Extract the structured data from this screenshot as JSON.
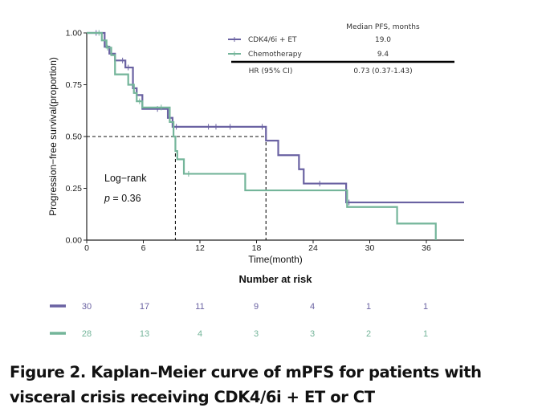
{
  "chart_data": {
    "type": "line",
    "subtype": "kaplan-meier-step",
    "ylabel": "Progression−free survival(proportion)",
    "xlabel": "Time(month)",
    "xlim": [
      0,
      39
    ],
    "ylim": [
      0,
      1
    ],
    "x_ticks": [
      0,
      6,
      12,
      18,
      24,
      30,
      36
    ],
    "x_tick_labels": [
      "0",
      "6",
      "12",
      "18",
      "24",
      "30",
      "36"
    ],
    "y_ticks": [
      0,
      0.25,
      0.5,
      0.75,
      1.0
    ],
    "y_tick_labels": [
      "0.00",
      "0.25",
      "0.50",
      "0.75",
      "1.00"
    ],
    "grid": false,
    "median_reference": {
      "y": 0.5,
      "x_values": [
        9.4,
        19.0
      ],
      "style": "dashed"
    },
    "annotation": {
      "line1": "Log−rank",
      "line2_prefix": "p",
      "line2_rest": " = 0.36"
    },
    "series": [
      {
        "name": "CDK4/6i + ET",
        "color": "#6a62a2",
        "steps": [
          [
            0,
            1.0
          ],
          [
            1.9,
            0.933
          ],
          [
            2.4,
            0.9
          ],
          [
            3.0,
            0.867
          ],
          [
            4.1,
            0.833
          ],
          [
            4.9,
            0.733
          ],
          [
            5.3,
            0.7
          ],
          [
            5.9,
            0.633
          ],
          [
            8.6,
            0.59
          ],
          [
            9.1,
            0.547
          ],
          [
            19.0,
            0.48
          ],
          [
            20.3,
            0.41
          ],
          [
            22.5,
            0.342
          ],
          [
            23.0,
            0.273
          ],
          [
            27.5,
            0.182
          ],
          [
            40,
            0.182
          ]
        ],
        "censor_times": [
          1.0,
          3.8,
          4.4,
          7.5,
          9.5,
          12.9,
          13.7,
          15.2,
          18.6,
          24.7,
          27.8
        ]
      },
      {
        "name": "Chemotherapy",
        "color": "#74b59a",
        "steps": [
          [
            0,
            1.0
          ],
          [
            1.6,
            0.964
          ],
          [
            2.1,
            0.929
          ],
          [
            2.6,
            0.893
          ],
          [
            3.0,
            0.8
          ],
          [
            4.4,
            0.75
          ],
          [
            5.0,
            0.71
          ],
          [
            5.3,
            0.67
          ],
          [
            5.9,
            0.64
          ],
          [
            8.8,
            0.57
          ],
          [
            9.2,
            0.5
          ],
          [
            9.4,
            0.43
          ],
          [
            9.6,
            0.39
          ],
          [
            10.3,
            0.32
          ],
          [
            16.8,
            0.24
          ],
          [
            27.6,
            0.16
          ],
          [
            32.9,
            0.08
          ],
          [
            37.0,
            0.0
          ]
        ],
        "censor_times": [
          1.3,
          2.2,
          5.6,
          7.9,
          10.8
        ]
      }
    ],
    "legend": {
      "position": "top-right",
      "header": "Median PFS, months",
      "rows": [
        {
          "label": "CDK4/6i + ET",
          "median": "19.0"
        },
        {
          "label": "Chemotherapy",
          "median": "9.4"
        }
      ],
      "hr_label": "HR (95% CI)",
      "hr_value": "0.73 (0.37-1.43)"
    },
    "risk_table": {
      "title": "Number at risk",
      "times": [
        0,
        6,
        12,
        18,
        24,
        30,
        36
      ],
      "rows": [
        {
          "name": "CDK4/6i + ET",
          "values": [
            30,
            17,
            11,
            9,
            4,
            1,
            1
          ]
        },
        {
          "name": "Chemotherapy",
          "values": [
            28,
            13,
            4,
            3,
            3,
            2,
            1
          ]
        }
      ]
    }
  },
  "caption": {
    "line1": "Figure 2. Kaplan–Meier curve of mPFS for patients with",
    "line2": "visceral crisis receiving CDK4/6i + ET or CT"
  }
}
